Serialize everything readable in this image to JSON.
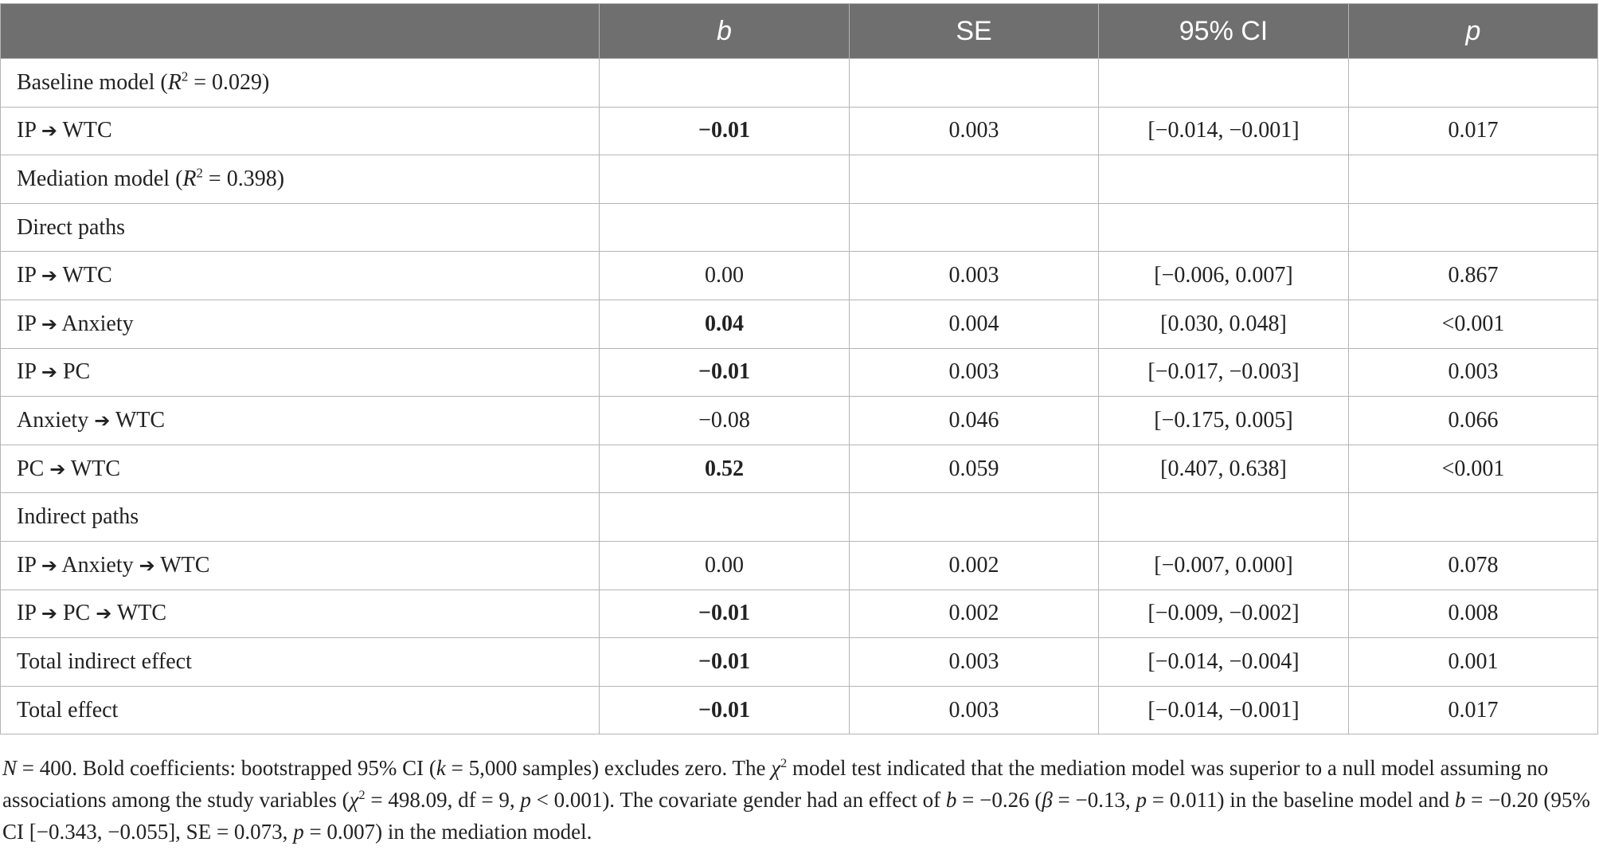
{
  "header": {
    "col0": "",
    "col1": "b",
    "col2": "SE",
    "col3": "95% CI",
    "col4": "p"
  },
  "rows": [
    {
      "label_parts": {
        "a": "Baseline model (",
        "r": "R",
        "sup": "2",
        "b": " = 0.029)"
      }
    },
    {
      "label": "IP ➔ WTC",
      "b": "−0.01",
      "b_bold": true,
      "se": "0.003",
      "ci": "[−0.014, −0.001]",
      "p": "0.017"
    },
    {
      "label_parts": {
        "a": "Mediation model (",
        "r": "R",
        "sup": "2",
        "b": " = 0.398)"
      }
    },
    {
      "label": "Direct paths"
    },
    {
      "label": "IP ➔ WTC",
      "b": "0.00",
      "b_bold": false,
      "se": "0.003",
      "ci": "[−0.006, 0.007]",
      "p": "0.867"
    },
    {
      "label": "IP ➔ Anxiety",
      "b": "0.04",
      "b_bold": true,
      "se": "0.004",
      "ci": "[0.030, 0.048]",
      "p": "<0.001"
    },
    {
      "label": "IP ➔ PC",
      "b": "−0.01",
      "b_bold": true,
      "se": "0.003",
      "ci": "[−0.017, −0.003]",
      "p": "0.003"
    },
    {
      "label": "Anxiety ➔ WTC",
      "b": "−0.08",
      "b_bold": false,
      "se": "0.046",
      "ci": "[−0.175, 0.005]",
      "p": "0.066"
    },
    {
      "label": "PC ➔ WTC",
      "b": "0.52",
      "b_bold": true,
      "se": "0.059",
      "ci": "[0.407, 0.638]",
      "p": "<0.001"
    },
    {
      "label": "Indirect paths"
    },
    {
      "label": "IP ➔ Anxiety ➔ WTC",
      "b": "0.00",
      "b_bold": false,
      "se": "0.002",
      "ci": "[−0.007, 0.000]",
      "p": "0.078"
    },
    {
      "label": "IP ➔ PC ➔ WTC",
      "b": "−0.01",
      "b_bold": true,
      "se": "0.002",
      "ci": "[−0.009, −0.002]",
      "p": "0.008"
    },
    {
      "label": "Total indirect effect",
      "b": "−0.01",
      "b_bold": true,
      "se": "0.003",
      "ci": "[−0.014, −0.004]",
      "p": "0.001"
    },
    {
      "label": "Total effect",
      "b": "−0.01",
      "b_bold": true,
      "se": "0.003",
      "ci": "[−0.014, −0.001]",
      "p": "0.017"
    }
  ],
  "footnote": {
    "n_label": "N",
    "n_value": " = 400. Bold coefficients: bootstrapped 95% CI (",
    "k_label": "k",
    "k_value": " = 5,000 samples) excludes zero. The ",
    "chi_label": "χ",
    "chi_sup": "2",
    "text2": " model test indicated that the mediation model was superior to a null model assuming no associations among the study variables (",
    "chi2_label": "χ",
    "chi2_sup": "2",
    "text3": " = 498.09, df = 9, ",
    "p1_label": "p",
    "text4": " < 0.001). The covariate gender had an effect of ",
    "b1_label": "b",
    "text5": " = −0.26 (",
    "beta_label": "β",
    "text6": " = −0.13, ",
    "p2_label": "p",
    "text7": " = 0.011) in the baseline model and ",
    "b2_label": "b",
    "text8": " = −0.20 (95% CI [−0.343, −0.055], SE = 0.073, ",
    "p3_label": "p",
    "text9": " = 0.007) in the mediation model."
  }
}
